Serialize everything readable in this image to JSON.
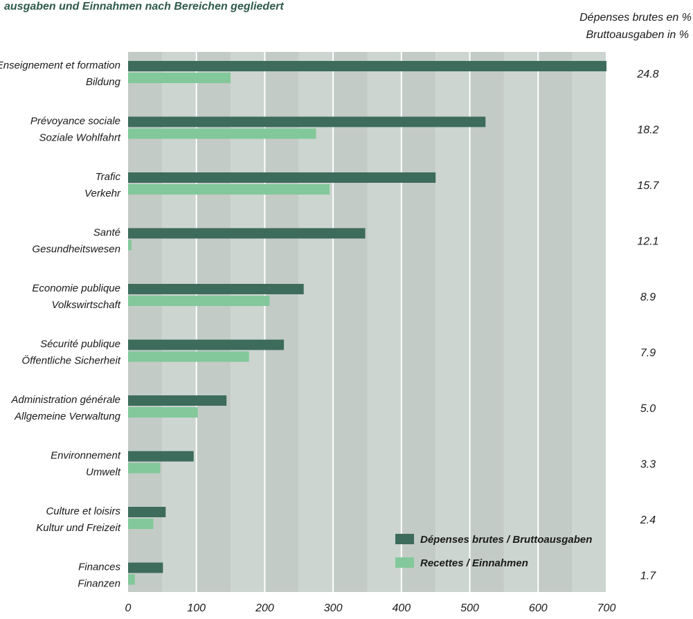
{
  "chart_data": {
    "type": "bar",
    "title": "ausgaben und Einnahmen nach Bereichen gegliedert",
    "pct_header": [
      "Dépenses brutes en %",
      "Bruttoausgaben in %"
    ],
    "categories": [
      {
        "fr": "Enseignement et formation",
        "de": "Bildung",
        "pct": "24.8"
      },
      {
        "fr": "Prévoyance sociale",
        "de": "Soziale Wohlfahrt",
        "pct": "18.2"
      },
      {
        "fr": "Trafic",
        "de": "Verkehr",
        "pct": "15.7"
      },
      {
        "fr": "Santé",
        "de": "Gesundheitswesen",
        "pct": "12.1"
      },
      {
        "fr": "Economie publique",
        "de": "Volkswirtschaft",
        "pct": "8.9"
      },
      {
        "fr": "Sécurité publique",
        "de": "Öffentliche Sicherheit",
        "pct": "7.9"
      },
      {
        "fr": "Administration générale",
        "de": "Allgemeine Verwaltung",
        "pct": "5.0"
      },
      {
        "fr": "Environnement",
        "de": "Umwelt",
        "pct": "3.3"
      },
      {
        "fr": "Culture et loisirs",
        "de": "Kultur und Freizeit",
        "pct": "2.4"
      },
      {
        "fr": "Finances",
        "de": "Finanzen",
        "pct": "1.7"
      }
    ],
    "series": [
      {
        "name": "Dépenses brutes / Bruttoausgaben",
        "color": "#3d6b5c",
        "values": [
          700,
          523,
          450,
          347,
          257,
          228,
          144,
          96,
          55,
          51
        ]
      },
      {
        "name": "Recettes / Einnahmen",
        "color": "#82c89a",
        "values": [
          150,
          275,
          295,
          5,
          207,
          177,
          102,
          47,
          37,
          10
        ]
      }
    ],
    "xlim": [
      0,
      700
    ],
    "xticks": [
      "0",
      "100",
      "200",
      "300",
      "400",
      "500",
      "600",
      "700"
    ],
    "grid": true,
    "legend_position": "bottom-right",
    "background_stripes": [
      "#c3cbc6",
      "#ccd5d0"
    ]
  }
}
